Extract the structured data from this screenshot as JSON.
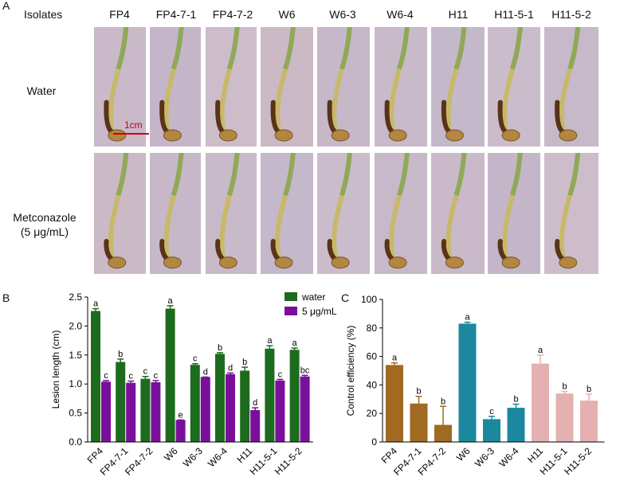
{
  "panel_labels": {
    "a": "A",
    "b": "B",
    "c": "C"
  },
  "isolates_header": "Isolates",
  "isolates": [
    "FP4",
    "FP4-7-1",
    "FP4-7-2",
    "W6",
    "W6-3",
    "W6-4",
    "H11",
    "H11-5-1",
    "H11-5-2"
  ],
  "row_labels": {
    "water": "Water",
    "metconazole": "Metconazole",
    "metconazole_conc": "(5 μg/mL)"
  },
  "scale_bar": "1cm",
  "colors": {
    "water_green": "#1d6b1d",
    "purple": "#7a0f9c",
    "brown": "#a06a22",
    "teal": "#1c88a0",
    "pink": "#e4b1b0",
    "photo_bg": "#c8b8c8"
  },
  "chart_data": [
    {
      "type": "bar",
      "id": "B",
      "ylabel": "Lesion length (cm)",
      "ylim": [
        0,
        2.5
      ],
      "yticks": [
        "0.0",
        "0.5",
        "1.0",
        "1.5",
        "2.0",
        "2.5"
      ],
      "categories": [
        "FP4",
        "FP4-7-1",
        "FP4-7-2",
        "W6",
        "W6-3",
        "W6-4",
        "H11",
        "H11-5-1",
        "H11-5-2"
      ],
      "series": [
        {
          "name": "water",
          "values": [
            2.26,
            1.38,
            1.09,
            2.3,
            1.33,
            1.52,
            1.23,
            1.61,
            1.59
          ],
          "errors": [
            0.04,
            0.05,
            0.04,
            0.05,
            0.02,
            0.02,
            0.06,
            0.05,
            0.03
          ],
          "letters": [
            "a",
            "b",
            "c",
            "a",
            "c",
            "b",
            "b",
            "a",
            "a"
          ]
        },
        {
          "name": "5 μg/mL",
          "values": [
            1.04,
            1.02,
            1.03,
            0.38,
            1.12,
            1.17,
            0.55,
            1.06,
            1.13
          ],
          "errors": [
            0.02,
            0.03,
            0.03,
            0.0,
            0.0,
            0.02,
            0.04,
            0.02,
            0.02
          ],
          "letters": [
            "c",
            "c",
            "c",
            "e",
            "d",
            "d",
            "d",
            "c",
            "bc"
          ]
        }
      ]
    },
    {
      "type": "bar",
      "id": "C",
      "ylabel": "Control efficiency (%)",
      "ylim": [
        0,
        100
      ],
      "yticks": [
        "0",
        "20",
        "40",
        "60",
        "80",
        "100"
      ],
      "categories": [
        "FP4",
        "FP4-7-1",
        "FP4-7-2",
        "W6",
        "W6-3",
        "W6-4",
        "H11",
        "H11-5-1",
        "H11-5-2"
      ],
      "values": [
        54,
        27,
        12,
        83,
        16,
        24,
        55,
        34,
        29
      ],
      "errors": [
        1.5,
        5,
        13,
        1,
        2,
        2.5,
        6,
        1.5,
        4.5
      ],
      "letters": [
        "a",
        "b",
        "b",
        "a",
        "c",
        "b",
        "a",
        "b",
        "b"
      ],
      "group_colors": [
        "brown",
        "brown",
        "brown",
        "teal",
        "teal",
        "teal",
        "pink",
        "pink",
        "pink"
      ]
    }
  ]
}
